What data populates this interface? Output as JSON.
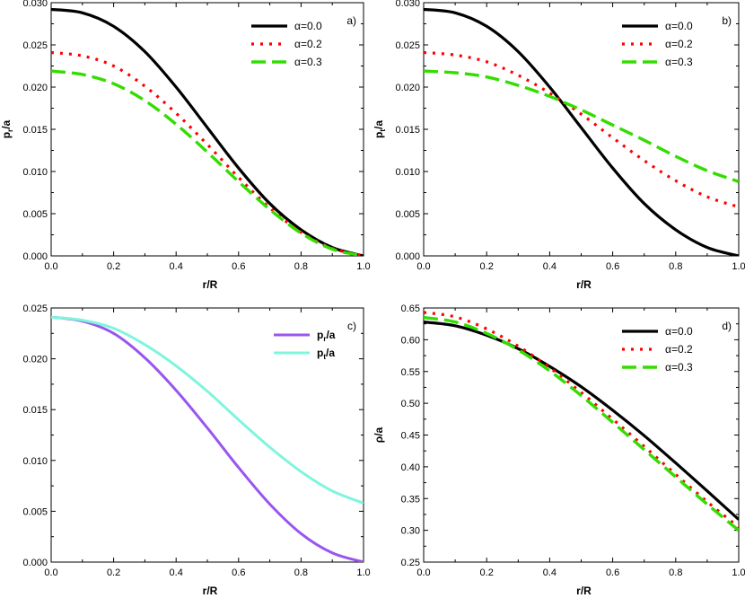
{
  "chart_data": [
    {
      "type": "line",
      "panel_label": "a)",
      "xlabel": "r/R",
      "ylabel": {
        "main": "p",
        "sub": "r",
        "tail": "/a"
      },
      "xlim": [
        0,
        1
      ],
      "ylim": [
        0,
        0.03
      ],
      "xticks": [
        "0.0",
        "0.2",
        "0.4",
        "0.6",
        "0.8",
        "1.0"
      ],
      "yticks": [
        "0.000",
        "0.005",
        "0.010",
        "0.015",
        "0.020",
        "0.025",
        "0.030"
      ],
      "legend_position": "top-right",
      "x": [
        0,
        0.1,
        0.2,
        0.3,
        0.4,
        0.5,
        0.6,
        0.7,
        0.8,
        0.9,
        1.0
      ],
      "series": [
        {
          "name": "α=0.0",
          "values": [
            0.0292,
            0.0288,
            0.0272,
            0.0242,
            0.02,
            0.0152,
            0.0104,
            0.0062,
            0.0031,
            0.001,
            0.0
          ]
        },
        {
          "name": "α=0.2",
          "values": [
            0.0241,
            0.0237,
            0.0225,
            0.0201,
            0.0169,
            0.0132,
            0.0093,
            0.0057,
            0.0028,
            0.0009,
            0.0
          ]
        },
        {
          "name": "α=0.3",
          "values": [
            0.0219,
            0.0215,
            0.0204,
            0.0184,
            0.0156,
            0.0123,
            0.0088,
            0.0055,
            0.0027,
            0.0008,
            0.0
          ]
        }
      ]
    },
    {
      "type": "line",
      "panel_label": "b)",
      "xlabel": "r/R",
      "ylabel": {
        "main": "p",
        "sub": "t",
        "tail": "/a"
      },
      "xlim": [
        0,
        1
      ],
      "ylim": [
        0,
        0.03
      ],
      "xticks": [
        "0.0",
        "0.2",
        "0.4",
        "0.6",
        "0.8",
        "1.0"
      ],
      "yticks": [
        "0.000",
        "0.005",
        "0.010",
        "0.015",
        "0.020",
        "0.025",
        "0.030"
      ],
      "legend_position": "top-right",
      "x": [
        0,
        0.1,
        0.2,
        0.3,
        0.4,
        0.5,
        0.6,
        0.7,
        0.8,
        0.9,
        1.0
      ],
      "series": [
        {
          "name": "α=0.0",
          "values": [
            0.0292,
            0.0288,
            0.0272,
            0.0242,
            0.02,
            0.0152,
            0.0104,
            0.0062,
            0.0031,
            0.001,
            0.0
          ]
        },
        {
          "name": "α=0.2",
          "values": [
            0.0241,
            0.0238,
            0.023,
            0.0214,
            0.0193,
            0.0168,
            0.014,
            0.0113,
            0.0089,
            0.007,
            0.0058
          ]
        },
        {
          "name": "α=0.3",
          "values": [
            0.0219,
            0.0217,
            0.0212,
            0.0202,
            0.0189,
            0.0173,
            0.0155,
            0.0137,
            0.0118,
            0.0101,
            0.0088
          ]
        }
      ]
    },
    {
      "type": "line",
      "panel_label": "c)",
      "xlabel": "r/R",
      "ylabel": null,
      "xlim": [
        0,
        1
      ],
      "ylim": [
        0,
        0.025
      ],
      "xticks": [
        "0.0",
        "0.2",
        "0.4",
        "0.6",
        "0.8",
        "1.0"
      ],
      "yticks": [
        "0.000",
        "0.005",
        "0.010",
        "0.015",
        "0.020",
        "0.025"
      ],
      "legend_position": "top-right",
      "x": [
        0,
        0.1,
        0.2,
        0.3,
        0.4,
        0.5,
        0.6,
        0.7,
        0.8,
        0.9,
        1.0
      ],
      "series": [
        {
          "name": "pr/a",
          "label": {
            "main": "p",
            "sub": "r",
            "tail": "/a"
          },
          "values": [
            0.0241,
            0.0237,
            0.0225,
            0.0201,
            0.0169,
            0.0132,
            0.0093,
            0.0057,
            0.0028,
            0.0009,
            0.0
          ]
        },
        {
          "name": "pt/a",
          "label": {
            "main": "p",
            "sub": "t",
            "tail": "/a"
          },
          "values": [
            0.0241,
            0.0238,
            0.023,
            0.0214,
            0.0193,
            0.0168,
            0.014,
            0.0113,
            0.0089,
            0.007,
            0.0058
          ]
        }
      ]
    },
    {
      "type": "line",
      "panel_label": "d)",
      "xlabel": "r/R",
      "ylabel": {
        "main": "ρ/a",
        "sub": "",
        "tail": ""
      },
      "xlim": [
        0,
        1
      ],
      "ylim": [
        0.25,
        0.65
      ],
      "xticks": [
        "0.0",
        "0.2",
        "0.4",
        "0.6",
        "0.8",
        "1.0"
      ],
      "yticks": [
        "0.25",
        "0.30",
        "0.35",
        "0.40",
        "0.45",
        "0.50",
        "0.55",
        "0.60",
        "0.65"
      ],
      "legend_position": "top-right",
      "x": [
        0,
        0.1,
        0.2,
        0.3,
        0.4,
        0.5,
        0.6,
        0.7,
        0.8,
        0.9,
        1.0
      ],
      "series": [
        {
          "name": "α=0.0",
          "values": [
            0.628,
            0.622,
            0.607,
            0.586,
            0.558,
            0.526,
            0.489,
            0.449,
            0.406,
            0.362,
            0.317
          ]
        },
        {
          "name": "α=0.2",
          "values": [
            0.643,
            0.636,
            0.617,
            0.59,
            0.556,
            0.517,
            0.475,
            0.432,
            0.388,
            0.345,
            0.305
          ]
        },
        {
          "name": "α=0.3",
          "values": [
            0.635,
            0.628,
            0.61,
            0.584,
            0.551,
            0.512,
            0.47,
            0.427,
            0.384,
            0.341,
            0.3
          ]
        }
      ]
    }
  ],
  "colors": {
    "alpha_0_0": "#000000",
    "alpha_0_2": "#ff0000",
    "alpha_0_3": "#33dd00",
    "pr": "#9955ee",
    "pt": "#7ff5dd"
  }
}
